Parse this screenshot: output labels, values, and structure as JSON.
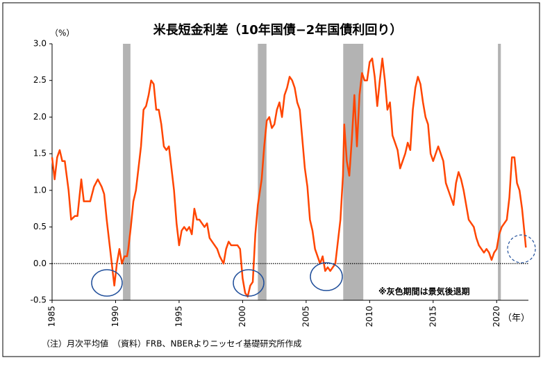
{
  "chart_data": {
    "type": "line",
    "title": "米長短金利差（10年国債−2年国債利回り）",
    "y_label": "（%）",
    "x_label": "（年）",
    "annotation": "※灰色期間は景気後退期",
    "note": "（注）月次平均値　（資料）FRB、NBERよりニッセイ基礎研究所作成",
    "xlim": [
      1985,
      2022.5
    ],
    "xticks": [
      1985,
      1990,
      1995,
      2000,
      2005,
      2010,
      2015,
      2020
    ],
    "ylim": [
      -0.5,
      3.0
    ],
    "yticks": [
      {
        "value": 3.0,
        "label": "3.0"
      },
      2.5,
      {
        "value": 2.0,
        "label": "2.0"
      },
      1.5,
      {
        "value": 1.0,
        "label": "1.0"
      },
      0.5,
      {
        "value": 0.0,
        "label": "0.0"
      },
      -0.5
    ],
    "recessions": [
      [
        1990.58,
        1991.17
      ],
      [
        2001.2,
        2001.88
      ],
      [
        2007.92,
        2009.5
      ],
      [
        2020.1,
        2020.33
      ]
    ],
    "recession_color": "#b3b3b3",
    "series": [
      {
        "color": "#ff4500",
        "x": [
          1985.0,
          1985.2,
          1985.4,
          1985.6,
          1985.8,
          1986.0,
          1986.3,
          1986.5,
          1986.8,
          1987.0,
          1987.3,
          1987.5,
          1987.8,
          1988.0,
          1988.3,
          1988.6,
          1988.9,
          1989.1,
          1989.3,
          1989.5,
          1989.7,
          1989.9,
          1990.1,
          1990.3,
          1990.5,
          1990.7,
          1990.9,
          1991.0,
          1991.2,
          1991.4,
          1991.6,
          1991.8,
          1992.0,
          1992.2,
          1992.4,
          1992.6,
          1992.8,
          1993.0,
          1993.2,
          1993.4,
          1993.6,
          1993.8,
          1994.0,
          1994.2,
          1994.4,
          1994.6,
          1994.8,
          1995.0,
          1995.2,
          1995.4,
          1995.6,
          1995.8,
          1996.0,
          1996.2,
          1996.4,
          1996.6,
          1996.8,
          1997.0,
          1997.2,
          1997.4,
          1997.6,
          1997.8,
          1998.0,
          1998.2,
          1998.5,
          1998.7,
          1998.9,
          1999.1,
          1999.3,
          1999.6,
          1999.8,
          2000.0,
          2000.2,
          2000.4,
          2000.6,
          2000.8,
          2001.0,
          2001.2,
          2001.5,
          2001.7,
          2001.9,
          2002.1,
          2002.3,
          2002.5,
          2002.7,
          2002.9,
          2003.1,
          2003.3,
          2003.5,
          2003.7,
          2003.9,
          2004.1,
          2004.3,
          2004.5,
          2004.7,
          2004.9,
          2005.1,
          2005.3,
          2005.5,
          2005.7,
          2005.9,
          2006.1,
          2006.3,
          2006.5,
          2006.7,
          2006.9,
          2007.1,
          2007.3,
          2007.5,
          2007.7,
          2007.9,
          2008.0,
          2008.2,
          2008.4,
          2008.6,
          2008.8,
          2009.0,
          2009.2,
          2009.4,
          2009.6,
          2009.8,
          2010.0,
          2010.2,
          2010.4,
          2010.6,
          2010.8,
          2011.0,
          2011.2,
          2011.4,
          2011.6,
          2011.8,
          2012.0,
          2012.2,
          2012.4,
          2012.6,
          2012.8,
          2013.0,
          2013.2,
          2013.4,
          2013.6,
          2013.8,
          2014.0,
          2014.2,
          2014.4,
          2014.6,
          2014.8,
          2015.0,
          2015.2,
          2015.4,
          2015.6,
          2015.8,
          2016.0,
          2016.2,
          2016.4,
          2016.6,
          2016.8,
          2017.0,
          2017.2,
          2017.4,
          2017.6,
          2017.8,
          2018.0,
          2018.2,
          2018.4,
          2018.6,
          2018.8,
          2019.0,
          2019.2,
          2019.4,
          2019.6,
          2019.8,
          2020.0,
          2020.2,
          2020.4,
          2020.6,
          2020.8,
          2021.0,
          2021.2,
          2021.4,
          2021.6,
          2021.8,
          2022.0,
          2022.2,
          2022.3
        ],
        "values": [
          1.45,
          1.15,
          1.45,
          1.55,
          1.4,
          1.4,
          1.0,
          0.6,
          0.65,
          0.65,
          1.15,
          0.85,
          0.85,
          0.85,
          1.05,
          1.15,
          1.05,
          0.95,
          0.6,
          0.3,
          0.0,
          -0.3,
          0.0,
          0.2,
          0.0,
          0.1,
          0.1,
          0.2,
          0.5,
          0.85,
          1.0,
          1.3,
          1.6,
          2.1,
          2.15,
          2.3,
          2.5,
          2.45,
          2.1,
          2.1,
          1.9,
          1.6,
          1.55,
          1.6,
          1.3,
          1.0,
          0.55,
          0.25,
          0.45,
          0.5,
          0.45,
          0.5,
          0.4,
          0.75,
          0.6,
          0.6,
          0.55,
          0.5,
          0.55,
          0.35,
          0.3,
          0.25,
          0.2,
          0.1,
          0.0,
          0.2,
          0.3,
          0.25,
          0.25,
          0.25,
          0.2,
          -0.2,
          -0.4,
          -0.45,
          -0.3,
          -0.25,
          0.4,
          0.8,
          1.15,
          1.6,
          1.95,
          2.0,
          1.85,
          1.9,
          2.1,
          2.2,
          2.0,
          2.3,
          2.4,
          2.55,
          2.5,
          2.4,
          2.2,
          2.1,
          1.7,
          1.3,
          1.05,
          0.6,
          0.45,
          0.2,
          0.1,
          0.0,
          0.1,
          -0.1,
          -0.05,
          -0.1,
          -0.05,
          0.0,
          0.3,
          0.6,
          1.2,
          1.9,
          1.4,
          1.2,
          1.7,
          2.3,
          1.6,
          2.3,
          2.6,
          2.5,
          2.5,
          2.75,
          2.8,
          2.55,
          2.15,
          2.5,
          2.8,
          2.5,
          2.1,
          2.2,
          1.75,
          1.65,
          1.55,
          1.3,
          1.4,
          1.5,
          1.65,
          1.55,
          2.1,
          2.4,
          2.55,
          2.45,
          2.2,
          2.0,
          1.9,
          1.5,
          1.4,
          1.5,
          1.6,
          1.5,
          1.4,
          1.1,
          1.0,
          0.9,
          0.8,
          1.1,
          1.25,
          1.15,
          1.0,
          0.8,
          0.6,
          0.55,
          0.5,
          0.35,
          0.25,
          0.2,
          0.15,
          0.2,
          0.15,
          0.05,
          0.15,
          0.2,
          0.4,
          0.5,
          0.55,
          0.6,
          0.9,
          1.45,
          1.45,
          1.1,
          1.0,
          0.75,
          0.4,
          0.22
        ]
      }
    ]
  }
}
